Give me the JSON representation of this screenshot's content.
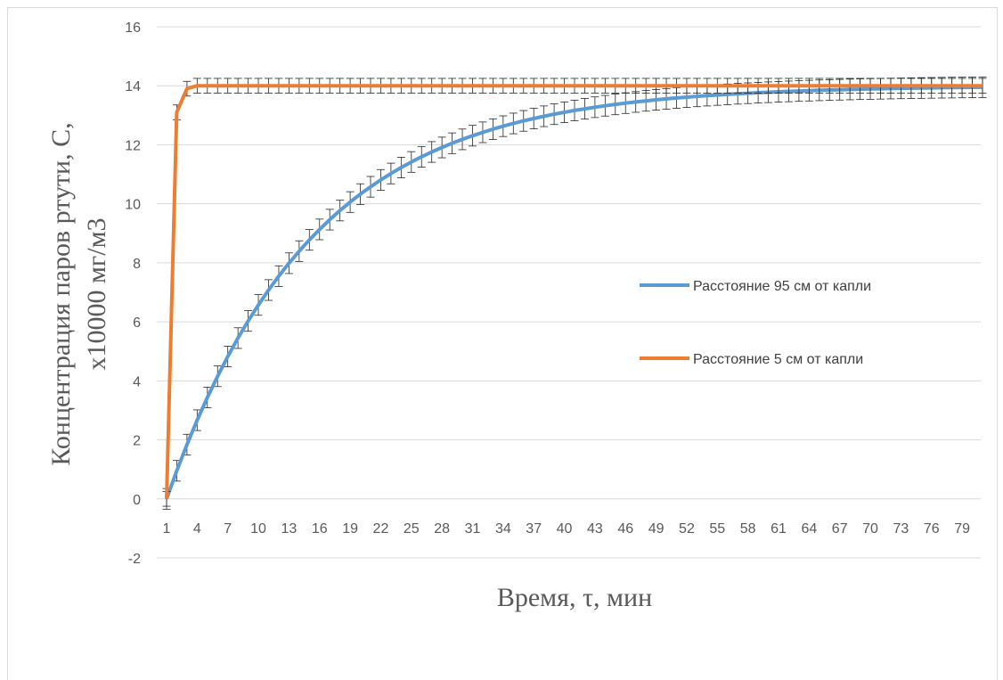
{
  "chart_data": {
    "type": "line",
    "title": "",
    "xlabel": "Время, τ, мин",
    "ylabel_line1": "Концентрация паров ртути, С,",
    "ylabel_line2": "х10000  мг/м3",
    "ylim": [
      -2,
      16
    ],
    "yticks": [
      -2,
      0,
      2,
      4,
      6,
      8,
      10,
      12,
      14,
      16
    ],
    "x_range": [
      1,
      81
    ],
    "x_tick_labels": [
      "1",
      "4",
      "7",
      "10",
      "13",
      "16",
      "19",
      "22",
      "25",
      "28",
      "31",
      "34",
      "37",
      "40",
      "43",
      "46",
      "49",
      "52",
      "55",
      "58",
      "61",
      "64",
      "67",
      "70",
      "73",
      "76",
      "79"
    ],
    "grid": "horizontal",
    "legend_position": "right",
    "series": [
      {
        "name": "Расстояние 95 см от капли",
        "color": "#5b9bd5",
        "model": "exponential-rise",
        "plateau": 14,
        "time_constant": 14.2,
        "error": 0.35
      },
      {
        "name": "Расстояние 5 см от капли",
        "color": "#ed7d31",
        "points": [
          [
            1,
            0
          ],
          [
            2,
            13.1
          ],
          [
            3,
            13.9
          ],
          [
            4,
            14
          ],
          [
            81,
            14
          ]
        ],
        "error": 0.25
      }
    ]
  }
}
